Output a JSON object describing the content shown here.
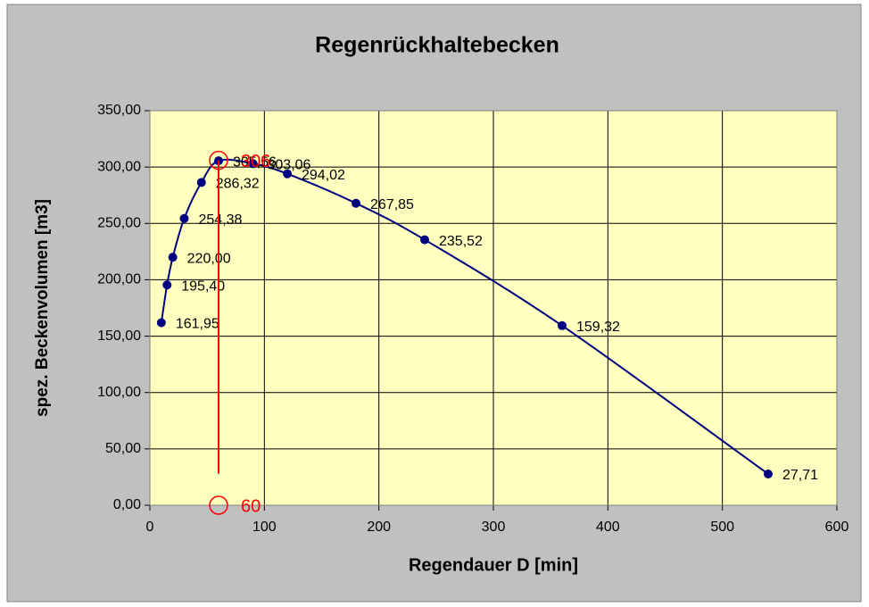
{
  "chart_data": {
    "type": "scatter",
    "title": "Regenrückhaltebecken",
    "xlabel": "Regendauer D [min]",
    "ylabel": "spez. Beckenvolumen [m3]",
    "xlim": [
      0,
      600
    ],
    "xticks": [
      0,
      100,
      200,
      300,
      400,
      500,
      600
    ],
    "ylim": [
      0,
      350
    ],
    "yticks": [
      {
        "value": 0,
        "label": "0,00"
      },
      {
        "value": 50,
        "label": "50,00"
      },
      {
        "value": 100,
        "label": "100,00"
      },
      {
        "value": 150,
        "label": "150,00"
      },
      {
        "value": 200,
        "label": "200,00"
      },
      {
        "value": 250,
        "label": "250,00"
      },
      {
        "value": 300,
        "label": "300,00"
      },
      {
        "value": 350,
        "label": "350,00"
      }
    ],
    "grid": true,
    "series": [
      {
        "color": "#000080",
        "smooth": true,
        "markers": true,
        "x": [
          10,
          15,
          20,
          30,
          45,
          60,
          90,
          120,
          180,
          240,
          360,
          540
        ],
        "values": [
          161.95,
          195.4,
          220.0,
          254.38,
          286.32,
          305.56,
          303.06,
          294.02,
          267.85,
          235.52,
          159.32,
          27.71
        ],
        "value_labels": [
          "161,95",
          "195,40",
          "220,00",
          "254,38",
          "286,32",
          "305,56",
          "303,06",
          "294,02",
          "267,85",
          "235,52",
          "159,32",
          "27,71"
        ]
      },
      {
        "color": "#ff0000",
        "smooth": false,
        "markers": false,
        "x": [
          60,
          60
        ],
        "values": [
          306,
          28
        ]
      }
    ],
    "annotations": [
      {
        "x": 60,
        "y": 306,
        "label": "306",
        "color": "#ff0000"
      },
      {
        "x": 60,
        "y": 0,
        "label": "60",
        "color": "#ff0000"
      }
    ]
  }
}
